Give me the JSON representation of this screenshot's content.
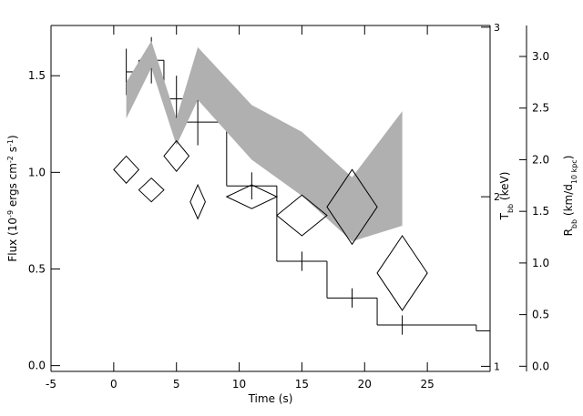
{
  "chart_data": {
    "type": "multi",
    "xlabel": "Time (s)",
    "ylabel": [
      "Flux (10",
      "-9",
      " ergs cm",
      "-2",
      " s",
      "-1",
      ")"
    ],
    "y2label": [
      "T",
      "bb",
      " (keV)"
    ],
    "y3label": [
      "R",
      "bb",
      " (km/d",
      "10 kpc",
      ")"
    ],
    "xlim": [
      -5,
      30
    ],
    "xticks": [
      -5,
      0,
      5,
      10,
      15,
      20,
      25
    ],
    "ylim": [
      -0.03,
      1.76
    ],
    "yticks": [
      {
        "value": 0,
        "label": "0.0"
      },
      {
        "value": 0.5,
        "label": "0.5"
      },
      {
        "value": 1,
        "label": "1.0"
      },
      {
        "value": 1.5,
        "label": "1.5"
      }
    ],
    "y2lim": [
      0.97,
      3.01
    ],
    "y2ticks": [
      1,
      2,
      3
    ],
    "y3lim": [
      -0.05,
      3.3
    ],
    "y3ticks": [
      {
        "value": 0,
        "label": "0.0"
      },
      {
        "value": 0.5,
        "label": "0.5"
      },
      {
        "value": 1,
        "label": "1.0"
      },
      {
        "value": 1.5,
        "label": "1.5"
      },
      {
        "value": 2,
        "label": "2.0"
      },
      {
        "value": 2.5,
        "label": "2.5"
      },
      {
        "value": 3,
        "label": "3.0"
      }
    ],
    "series": [
      {
        "type": "step",
        "color": "#000000",
        "bins": [
          1,
          2,
          4,
          5.7,
          9,
          13,
          17,
          21,
          28.9,
          30
        ],
        "values": [
          1.52,
          1.58,
          1.38,
          1.26,
          0.93,
          0.54,
          0.35,
          0.21,
          0.18
        ]
      },
      {
        "type": "errorbar",
        "color": "#000000",
        "x": [
          1,
          3,
          5,
          6.7,
          11,
          15,
          19,
          23
        ],
        "values": [
          1.52,
          1.58,
          1.38,
          1.26,
          0.93,
          0.54,
          0.35,
          0.21
        ],
        "errors": [
          0.12,
          0.12,
          0.12,
          0.12,
          0.07,
          0.05,
          0.05,
          0.05
        ]
      },
      {
        "type": "band",
        "axis": "y3",
        "color": "#b0b0b0",
        "x": [
          1,
          3,
          5,
          6.7,
          11,
          15,
          19,
          23
        ],
        "low": [
          2.4,
          2.89,
          2.14,
          2.58,
          2.0,
          1.65,
          1.21,
          1.36
        ],
        "high": [
          2.75,
          3.15,
          2.4,
          3.09,
          2.53,
          2.27,
          1.83,
          2.47
        ]
      },
      {
        "type": "diamond",
        "axis": "y2",
        "color": "#000000",
        "x": [
          1,
          3,
          5,
          6.7,
          11,
          15,
          19,
          23
        ],
        "values": [
          2.16,
          2.04,
          2.24,
          1.97,
          2.0,
          1.89,
          1.94,
          1.55
        ],
        "errors": [
          0.08,
          0.07,
          0.09,
          0.1,
          0.07,
          0.12,
          0.22,
          0.22
        ],
        "xerrors": [
          1,
          1,
          1,
          0.6,
          2,
          2,
          2,
          2
        ]
      }
    ]
  }
}
